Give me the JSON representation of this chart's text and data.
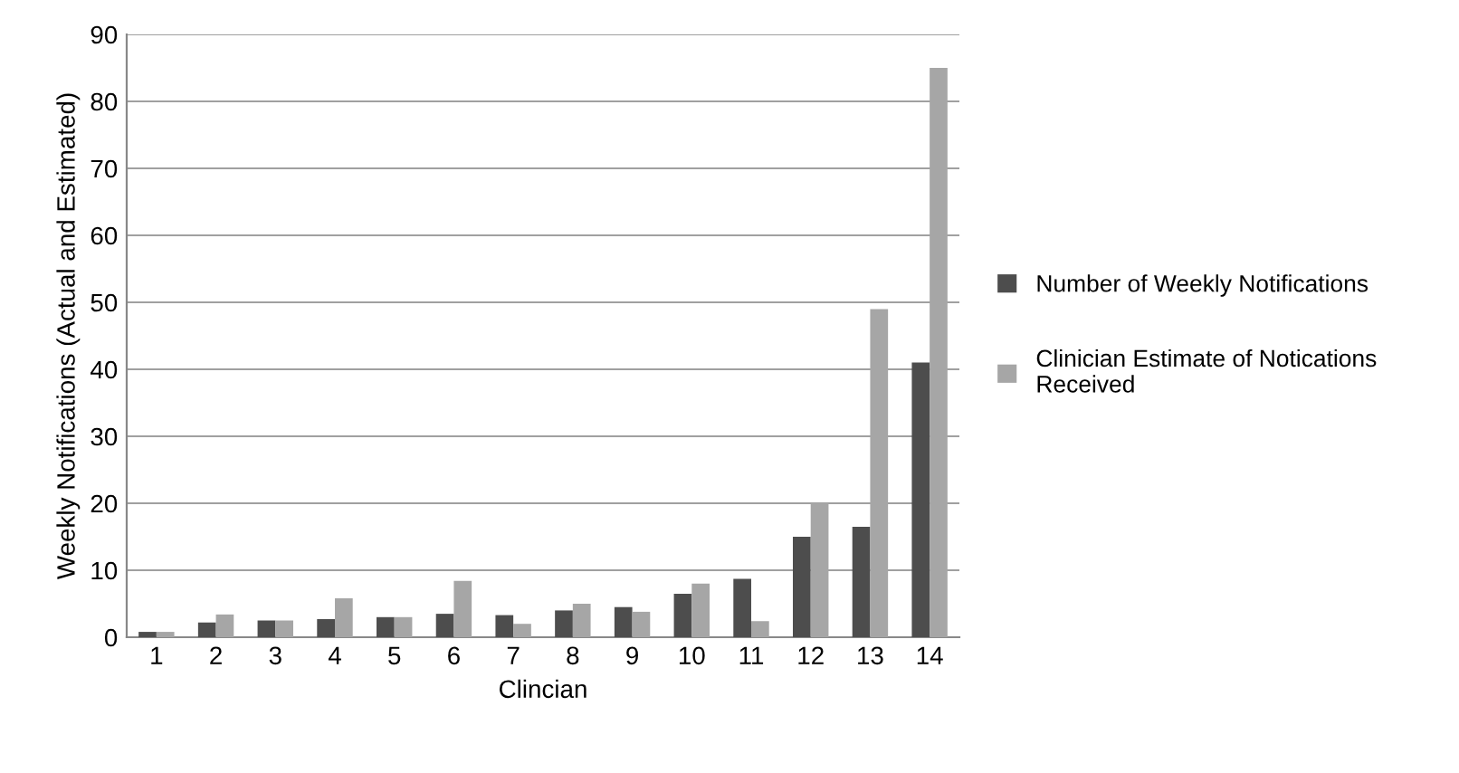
{
  "chart_data": {
    "type": "bar",
    "xlabel": "Clincian",
    "ylabel": "Weekly Notifications (Actual and Estimated)",
    "categories": [
      "1",
      "2",
      "3",
      "4",
      "5",
      "6",
      "7",
      "8",
      "9",
      "10",
      "11",
      "12",
      "13",
      "14"
    ],
    "series": [
      {
        "name": "Number of Weekly Notifications",
        "color": "#4d4d4d",
        "values": [
          0.8,
          2.2,
          2.5,
          2.7,
          3,
          3.5,
          3.3,
          4,
          4.5,
          6.5,
          8.7,
          15,
          16.5,
          41
        ]
      },
      {
        "name": "Clinician Estimate of Notications Received",
        "color": "#a6a6a6",
        "values": [
          0.8,
          3.4,
          2.5,
          5.8,
          3,
          8.4,
          2,
          5,
          3.8,
          8,
          2.4,
          20,
          49,
          85
        ]
      }
    ],
    "ylim": [
      0,
      90
    ],
    "yticks": [
      0,
      10,
      20,
      30,
      40,
      50,
      60,
      70,
      80,
      90
    ],
    "grid": "y",
    "legend": "right"
  }
}
